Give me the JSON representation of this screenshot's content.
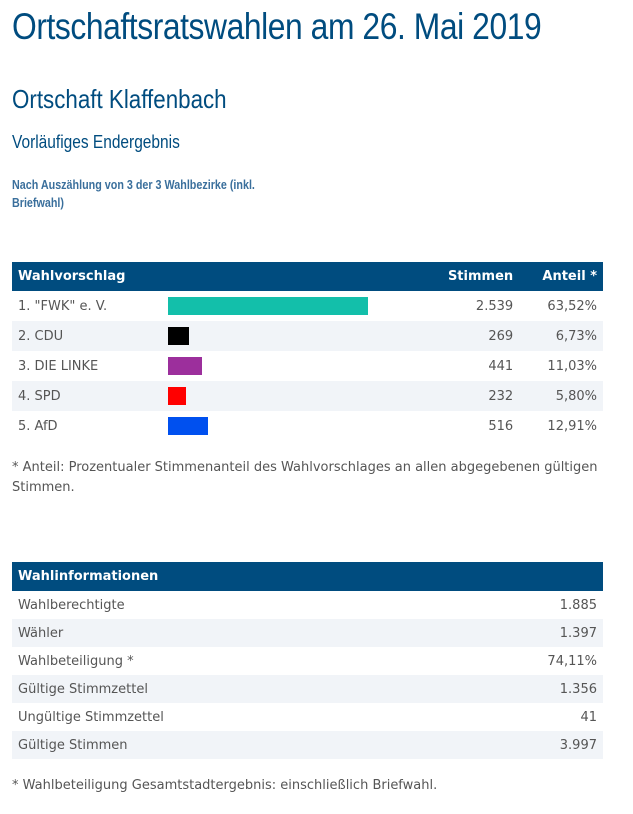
{
  "header": {
    "title": "Ortschaftsratswahlen am 26. Mai 2019",
    "subtitle": "Ortschaft Klaffenbach",
    "status": "Vorläufiges Endergebnis",
    "progress": "Nach Auszählung von 3 der 3 Wahlbezirke (inkl. Briefwahl)"
  },
  "results": {
    "columns": [
      "Wahlvorschlag",
      "Stimmen",
      "Anteil *"
    ],
    "rows": [
      {
        "name": "1. \"FWK\" e. V.",
        "votes": "2.539",
        "share": "63,52%",
        "share_value": 63.52,
        "color": "#13bfaa"
      },
      {
        "name": "2. CDU",
        "votes": "269",
        "share": "6,73%",
        "share_value": 6.73,
        "color": "#000000"
      },
      {
        "name": "3. DIE LINKE",
        "votes": "441",
        "share": "11,03%",
        "share_value": 11.03,
        "color": "#9c2f9c"
      },
      {
        "name": "4. SPD",
        "votes": "232",
        "share": "5,80%",
        "share_value": 5.8,
        "color": "#ff0000"
      },
      {
        "name": "5. AfD",
        "votes": "516",
        "share": "12,91%",
        "share_value": 12.91,
        "color": "#0050ef"
      }
    ],
    "footnote": "* Anteil: Prozentualer Stimmenanteil des Wahlvorschlages an allen abgegebenen gültigen Stimmen."
  },
  "info": {
    "header": "Wahlinformationen",
    "rows": [
      {
        "label": "Wahlberechtigte",
        "value": "1.885"
      },
      {
        "label": "Wähler",
        "value": "1.397"
      },
      {
        "label": "Wahlbeteiligung *",
        "value": "74,11%"
      },
      {
        "label": "Gültige Stimmzettel",
        "value": "1.356"
      },
      {
        "label": "Ungültige Stimmzettel",
        "value": "41"
      },
      {
        "label": "Gültige Stimmen",
        "value": "3.997"
      }
    ],
    "footnote": "* Wahlbeteiligung Gesamtstadtergebnis: einschließlich Briefwahl."
  },
  "colors": {
    "accent": "#004c7f",
    "row_alt": "#f1f4f8",
    "text": "#555555"
  }
}
